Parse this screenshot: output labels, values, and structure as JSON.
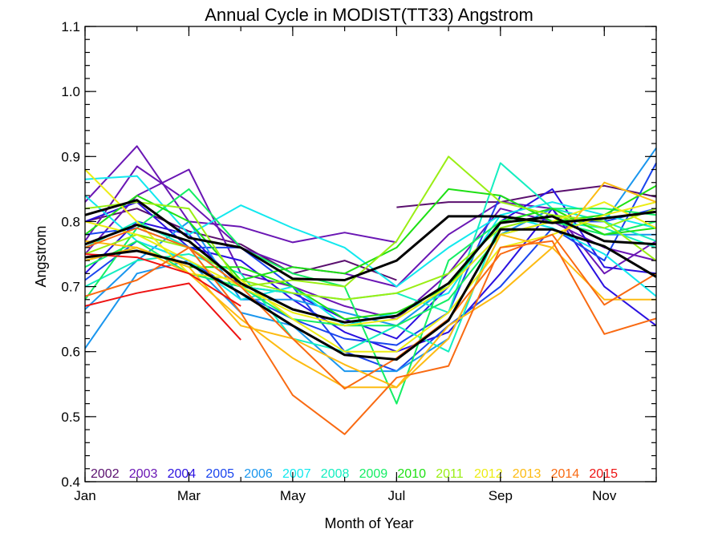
{
  "chart_data": {
    "type": "line",
    "title": "Annual Cycle in MODIST(TT33) Angstrom",
    "xlabel": "Month of Year",
    "ylabel": "Angstrom",
    "xlim": [
      1,
      12
    ],
    "ylim": [
      0.4,
      1.1
    ],
    "x_ticks": [
      {
        "x": 1,
        "label": "Jan"
      },
      {
        "x": 3,
        "label": "Mar"
      },
      {
        "x": 5,
        "label": "May"
      },
      {
        "x": 7,
        "label": "Jul"
      },
      {
        "x": 9,
        "label": "Sep"
      },
      {
        "x": 11,
        "label": "Nov"
      }
    ],
    "y_ticks": [
      {
        "y": 0.4,
        "label": "0.4"
      },
      {
        "y": 0.5,
        "label": "0.5"
      },
      {
        "y": 0.6,
        "label": "0.6"
      },
      {
        "y": 0.7,
        "label": "0.7"
      },
      {
        "y": 0.8,
        "label": "0.8"
      },
      {
        "y": 0.9,
        "label": "0.9"
      },
      {
        "y": 1.0,
        "label": "1.0"
      },
      {
        "y": 1.1,
        "label": "1.1"
      }
    ],
    "grid": false,
    "legend_position": "bottom",
    "legend": [
      {
        "label": "2002",
        "color": "#5a0f6e"
      },
      {
        "label": "2003",
        "color": "#6a16b4"
      },
      {
        "label": "2004",
        "color": "#2a10e0"
      },
      {
        "label": "2005",
        "color": "#1a45ee"
      },
      {
        "label": "2006",
        "color": "#1a96ee"
      },
      {
        "label": "2007",
        "color": "#12e8ee"
      },
      {
        "label": "2008",
        "color": "#14eec0"
      },
      {
        "label": "2009",
        "color": "#14ee64"
      },
      {
        "label": "2010",
        "color": "#1ee014"
      },
      {
        "label": "2011",
        "color": "#9aee14"
      },
      {
        "label": "2012",
        "color": "#ecec14"
      },
      {
        "label": "2013",
        "color": "#fdbb12"
      },
      {
        "label": "2014",
        "color": "#f96a12"
      },
      {
        "label": "2015",
        "color": "#ee1212"
      }
    ],
    "series": [
      {
        "color": "#5a0f6e",
        "x": [
          7,
          8,
          9,
          10,
          11,
          12
        ],
        "values": [
          0.822,
          0.83,
          0.83,
          0.845,
          0.855,
          0.838
        ]
      },
      {
        "color": "#5a0f6e",
        "x": [
          1,
          2,
          3,
          4,
          5,
          6,
          7
        ],
        "values": [
          0.8,
          0.82,
          0.785,
          0.765,
          0.72,
          0.74,
          0.71
        ]
      },
      {
        "color": "#6a16b4",
        "x": [
          1,
          2,
          3,
          4,
          5,
          6,
          7
        ],
        "values": [
          0.83,
          0.916,
          0.8,
          0.792,
          0.768,
          0.783,
          0.768
        ]
      },
      {
        "color": "#6a16b4",
        "x": [
          1,
          2,
          3,
          4,
          5,
          6,
          7,
          8,
          9,
          10,
          11,
          12
        ],
        "values": [
          0.77,
          0.885,
          0.83,
          0.76,
          0.73,
          0.72,
          0.7,
          0.78,
          0.83,
          0.82,
          0.72,
          0.77
        ]
      },
      {
        "color": "#6a16b4",
        "x": [
          1,
          2,
          3,
          4,
          5,
          6,
          7,
          8,
          9,
          10,
          11,
          12
        ],
        "values": [
          0.75,
          0.84,
          0.88,
          0.72,
          0.7,
          0.67,
          0.65,
          0.72,
          0.82,
          0.8,
          0.76,
          0.74
        ]
      },
      {
        "color": "#2a10e0",
        "x": [
          1,
          2,
          3,
          4,
          5,
          6,
          7,
          8,
          9,
          10,
          11,
          12
        ],
        "values": [
          0.72,
          0.8,
          0.78,
          0.7,
          0.69,
          0.65,
          0.62,
          0.7,
          0.8,
          0.85,
          0.73,
          0.72
        ]
      },
      {
        "color": "#2a10e0",
        "x": [
          1,
          2,
          3,
          4,
          5,
          6,
          7,
          8,
          9,
          10,
          11,
          12
        ],
        "values": [
          0.8,
          0.83,
          0.76,
          0.74,
          0.68,
          0.63,
          0.6,
          0.63,
          0.72,
          0.82,
          0.7,
          0.64
        ]
      },
      {
        "color": "#1a45ee",
        "x": [
          1,
          2,
          3,
          4,
          5,
          6,
          7,
          8,
          9,
          10,
          11,
          12
        ],
        "values": [
          0.78,
          0.79,
          0.76,
          0.76,
          0.7,
          0.6,
          0.57,
          0.64,
          0.7,
          0.79,
          0.74,
          0.89
        ]
      },
      {
        "color": "#1a45ee",
        "x": [
          1,
          2,
          3,
          4,
          5,
          6,
          7,
          8,
          9,
          10,
          11,
          12
        ],
        "values": [
          0.71,
          0.77,
          0.74,
          0.69,
          0.65,
          0.62,
          0.61,
          0.66,
          0.84,
          0.8,
          0.8,
          0.82
        ]
      },
      {
        "color": "#1a96ee",
        "x": [
          1,
          2,
          3,
          4,
          5,
          6,
          7,
          8,
          9,
          10,
          11,
          12
        ],
        "values": [
          0.605,
          0.72,
          0.74,
          0.66,
          0.64,
          0.57,
          0.57,
          0.62,
          0.78,
          0.82,
          0.8,
          0.913
        ]
      },
      {
        "color": "#1a96ee",
        "x": [
          1,
          2,
          3,
          4,
          5,
          6,
          7,
          8,
          9,
          10,
          11,
          12
        ],
        "values": [
          0.665,
          0.74,
          0.8,
          0.68,
          0.68,
          0.66,
          0.64,
          0.7,
          0.78,
          0.8,
          0.78,
          0.78
        ]
      },
      {
        "color": "#12e8ee",
        "x": [
          1,
          2,
          3,
          4,
          5,
          6,
          7,
          8,
          9,
          10,
          11,
          12
        ],
        "values": [
          0.865,
          0.87,
          0.78,
          0.825,
          0.79,
          0.76,
          0.7,
          0.76,
          0.81,
          0.79,
          0.75,
          0.685
        ]
      },
      {
        "color": "#12e8ee",
        "x": [
          1,
          2,
          3,
          4,
          5,
          6,
          7,
          8,
          9,
          10,
          11,
          12
        ],
        "values": [
          0.84,
          0.77,
          0.74,
          0.68,
          0.7,
          0.64,
          0.66,
          0.69,
          0.81,
          0.83,
          0.81,
          0.79
        ]
      },
      {
        "color": "#14eec0",
        "x": [
          1,
          2,
          3,
          4,
          5,
          6,
          7,
          8,
          9,
          10,
          11,
          12
        ],
        "values": [
          0.76,
          0.8,
          0.76,
          0.7,
          0.69,
          0.68,
          0.69,
          0.66,
          0.89,
          0.82,
          0.8,
          0.77
        ]
      },
      {
        "color": "#14eec0",
        "x": [
          1,
          2,
          3,
          4,
          5,
          6,
          7,
          8,
          9,
          10,
          11,
          12
        ],
        "values": [
          0.7,
          0.74,
          0.75,
          0.72,
          0.62,
          0.6,
          0.64,
          0.6,
          0.8,
          0.8,
          0.79,
          0.76
        ]
      },
      {
        "color": "#14ee64",
        "x": [
          1,
          2,
          3,
          4,
          5,
          6,
          7,
          8,
          9,
          10,
          11,
          12
        ],
        "values": [
          0.68,
          0.79,
          0.85,
          0.76,
          0.72,
          0.7,
          0.52,
          0.74,
          0.8,
          0.82,
          0.82,
          0.81
        ]
      },
      {
        "color": "#14ee64",
        "x": [
          1,
          2,
          3,
          4,
          5,
          6,
          7,
          8,
          9,
          10,
          11,
          12
        ],
        "values": [
          0.73,
          0.77,
          0.72,
          0.7,
          0.65,
          0.64,
          0.64,
          0.68,
          0.78,
          0.8,
          0.78,
          0.8
        ]
      },
      {
        "color": "#1ee014",
        "x": [
          1,
          2,
          3,
          4,
          5,
          6,
          7,
          8,
          9,
          10,
          11,
          12
        ],
        "values": [
          0.78,
          0.84,
          0.8,
          0.71,
          0.73,
          0.72,
          0.76,
          0.85,
          0.84,
          0.8,
          0.81,
          0.855
        ]
      },
      {
        "color": "#1ee014",
        "x": [
          1,
          2,
          3,
          4,
          5,
          6,
          7,
          8,
          9,
          10,
          11,
          12
        ],
        "values": [
          0.74,
          0.76,
          0.73,
          0.73,
          0.7,
          0.65,
          0.66,
          0.7,
          0.8,
          0.82,
          0.78,
          0.79
        ]
      },
      {
        "color": "#9aee14",
        "x": [
          1,
          2,
          3,
          4,
          5,
          6,
          7,
          8,
          9,
          10,
          11,
          12
        ],
        "values": [
          0.82,
          0.83,
          0.82,
          0.7,
          0.71,
          0.7,
          0.77,
          0.9,
          0.83,
          0.81,
          0.79,
          0.82
        ]
      },
      {
        "color": "#9aee14",
        "x": [
          1,
          2,
          3,
          4,
          5,
          6,
          7,
          8,
          9,
          10,
          11,
          12
        ],
        "values": [
          0.75,
          0.78,
          0.76,
          0.71,
          0.69,
          0.68,
          0.69,
          0.72,
          0.79,
          0.81,
          0.8,
          0.74
        ]
      },
      {
        "color": "#ecec14",
        "x": [
          1,
          2,
          3,
          4,
          5,
          6,
          7,
          8,
          9,
          10,
          11,
          12
        ],
        "values": [
          0.88,
          0.8,
          0.72,
          0.71,
          0.65,
          0.6,
          0.6,
          0.66,
          0.76,
          0.78,
          0.81,
          0.83
        ]
      },
      {
        "color": "#ecec14",
        "x": [
          1,
          2,
          3,
          4,
          5,
          6,
          7,
          8,
          9,
          10,
          11,
          12
        ],
        "values": [
          0.8,
          0.78,
          0.74,
          0.7,
          0.66,
          0.64,
          0.65,
          0.7,
          0.78,
          0.8,
          0.83,
          0.79
        ]
      },
      {
        "color": "#fdbb12",
        "x": [
          1,
          2,
          3,
          4,
          5,
          6,
          7,
          8,
          9,
          10,
          11,
          12
        ],
        "values": [
          0.77,
          0.76,
          0.73,
          0.64,
          0.62,
          0.58,
          0.545,
          0.62,
          0.78,
          0.76,
          0.86,
          0.83
        ]
      },
      {
        "color": "#fdbb12",
        "x": [
          1,
          2,
          3,
          4,
          5,
          6,
          7,
          8,
          9,
          10,
          11,
          12
        ],
        "values": [
          0.74,
          0.76,
          0.72,
          0.65,
          0.59,
          0.545,
          0.545,
          0.64,
          0.69,
          0.76,
          0.68,
          0.68
        ]
      },
      {
        "color": "#f96a12",
        "x": [
          1,
          2,
          3,
          4,
          5,
          6,
          7,
          8,
          9,
          10,
          11,
          12
        ],
        "values": [
          0.685,
          0.71,
          0.76,
          0.66,
          0.533,
          0.473,
          0.56,
          0.578,
          0.76,
          0.77,
          0.627,
          0.651
        ]
      },
      {
        "color": "#f96a12",
        "x": [
          1,
          2,
          3,
          4,
          5,
          6,
          7,
          8,
          9,
          10,
          11,
          12
        ],
        "values": [
          0.76,
          0.79,
          0.76,
          0.7,
          0.62,
          0.543,
          0.59,
          0.65,
          0.75,
          0.78,
          0.672,
          0.72
        ]
      },
      {
        "color": "#ee1212",
        "x": [
          1,
          2,
          3,
          4
        ],
        "values": [
          0.67,
          0.69,
          0.705,
          0.618
        ]
      },
      {
        "color": "#ee1212",
        "x": [
          1,
          2,
          3,
          4
        ],
        "values": [
          0.75,
          0.745,
          0.72,
          0.67
        ]
      },
      {
        "color": "#000000",
        "bold": true,
        "x": [
          1,
          2,
          3,
          4,
          5,
          6,
          7,
          8,
          9,
          10,
          11,
          12
        ],
        "values": [
          0.81,
          0.833,
          0.775,
          0.76,
          0.712,
          0.71,
          0.74,
          0.808,
          0.808,
          0.798,
          0.805,
          0.815
        ]
      },
      {
        "color": "#000000",
        "bold": true,
        "x": [
          1,
          2,
          3,
          4,
          5,
          6,
          7,
          8,
          9,
          10,
          11,
          12
        ],
        "values": [
          0.765,
          0.795,
          0.77,
          0.705,
          0.665,
          0.645,
          0.655,
          0.705,
          0.798,
          0.808,
          0.77,
          0.765
        ]
      },
      {
        "color": "#000000",
        "bold": true,
        "x": [
          1,
          2,
          3,
          4,
          5,
          6,
          7,
          8,
          9,
          10,
          11,
          12
        ],
        "values": [
          0.745,
          0.755,
          0.735,
          0.69,
          0.64,
          0.595,
          0.588,
          0.648,
          0.788,
          0.788,
          0.762,
          0.715
        ]
      }
    ]
  }
}
